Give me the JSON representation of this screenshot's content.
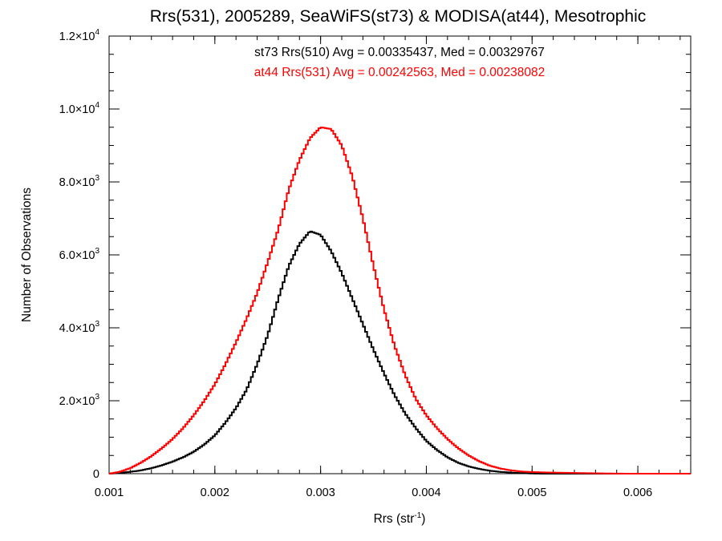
{
  "chart_data": {
    "type": "line",
    "title": "Rrs(531), 2005289, SeaWiFS(st73) & MODISA(at44), Mesotrophic",
    "xlabel": "Rrs (str",
    "xlabel_exponent": "-1",
    "xlabel_suffix": ")",
    "ylabel": "Number of Observations",
    "xlim": [
      0.001,
      0.0065
    ],
    "ylim": [
      0,
      12000
    ],
    "grid": false,
    "x_ticks": [
      0.001,
      0.002,
      0.003,
      0.004,
      0.005,
      0.006
    ],
    "x_tick_labels": [
      "0.001",
      "0.002",
      "0.003",
      "0.004",
      "0.005",
      "0.006"
    ],
    "y_ticks": [
      {
        "value": 0,
        "mantissa": "0",
        "exponent": ""
      },
      {
        "value": 2000,
        "mantissa": "2.0×10",
        "exponent": "3"
      },
      {
        "value": 4000,
        "mantissa": "4.0×10",
        "exponent": "3"
      },
      {
        "value": 6000,
        "mantissa": "6.0×10",
        "exponent": "3"
      },
      {
        "value": 8000,
        "mantissa": "8.0×10",
        "exponent": "3"
      },
      {
        "value": 10000,
        "mantissa": "1.0×10",
        "exponent": "4"
      },
      {
        "value": 12000,
        "mantissa": "1.2×10",
        "exponent": "4"
      }
    ],
    "annotations": [
      {
        "text": "st73 Rrs(510) Avg = 0.00335437, Med = 0.00329767",
        "color": "#000000"
      },
      {
        "text": "at44 Rrs(531) Avg = 0.00242563, Med = 0.00238082",
        "color": "#ff0000"
      }
    ],
    "series": [
      {
        "color": "#000000",
        "x": [
          0.001,
          0.0011,
          0.0012,
          0.0013,
          0.0014,
          0.0015,
          0.0016,
          0.0017,
          0.0018,
          0.0019,
          0.002,
          0.0021,
          0.0022,
          0.0023,
          0.0024,
          0.0025,
          0.0026,
          0.0027,
          0.0028,
          0.0029,
          0.003,
          0.0031,
          0.0032,
          0.0033,
          0.0034,
          0.0035,
          0.0036,
          0.0037,
          0.0038,
          0.0039,
          0.004,
          0.0041,
          0.0042,
          0.0043,
          0.0044,
          0.0045,
          0.0046,
          0.0047,
          0.0048,
          0.0049,
          0.005,
          0.0051,
          0.0052,
          0.0053,
          0.0054,
          0.0055,
          0.0056,
          0.0057,
          0.0058,
          0.0059,
          0.006,
          0.0061,
          0.0062,
          0.0063,
          0.0064,
          0.0065
        ],
        "y": [
          0,
          20,
          50,
          90,
          150,
          230,
          330,
          450,
          600,
          800,
          1050,
          1400,
          1800,
          2300,
          3000,
          3800,
          4800,
          5700,
          6300,
          6650,
          6550,
          6100,
          5500,
          4800,
          4100,
          3400,
          2750,
          2150,
          1650,
          1250,
          900,
          650,
          450,
          300,
          200,
          130,
          80,
          50,
          30,
          15,
          5,
          0,
          0,
          0,
          0,
          0,
          0,
          0,
          0,
          0,
          0,
          0,
          0,
          0,
          0,
          0
        ]
      },
      {
        "color": "#ff0000",
        "x": [
          0.001,
          0.0011,
          0.0012,
          0.0013,
          0.0014,
          0.0015,
          0.0016,
          0.0017,
          0.0018,
          0.0019,
          0.002,
          0.0021,
          0.0022,
          0.0023,
          0.0024,
          0.0025,
          0.0026,
          0.0027,
          0.0028,
          0.0029,
          0.003,
          0.0031,
          0.0032,
          0.0033,
          0.0034,
          0.0035,
          0.0036,
          0.0037,
          0.0038,
          0.0039,
          0.004,
          0.0041,
          0.0042,
          0.0043,
          0.0044,
          0.0045,
          0.0046,
          0.0047,
          0.0048,
          0.0049,
          0.005,
          0.0051,
          0.0052,
          0.0053,
          0.0054,
          0.0055,
          0.0056,
          0.0057,
          0.0058,
          0.0059,
          0.006,
          0.0061,
          0.0062,
          0.0063,
          0.0064,
          0.0065
        ],
        "y": [
          0,
          50,
          150,
          300,
          480,
          700,
          950,
          1250,
          1600,
          2000,
          2450,
          3000,
          3600,
          4250,
          4950,
          5800,
          6700,
          7800,
          8600,
          9200,
          9500,
          9450,
          9000,
          8150,
          7000,
          5700,
          4500,
          3500,
          2700,
          2050,
          1600,
          1250,
          950,
          700,
          500,
          340,
          220,
          140,
          90,
          60,
          45,
          35,
          30,
          25,
          20,
          15,
          10,
          6,
          3,
          0,
          0,
          0,
          0,
          0,
          0,
          0
        ]
      }
    ]
  }
}
